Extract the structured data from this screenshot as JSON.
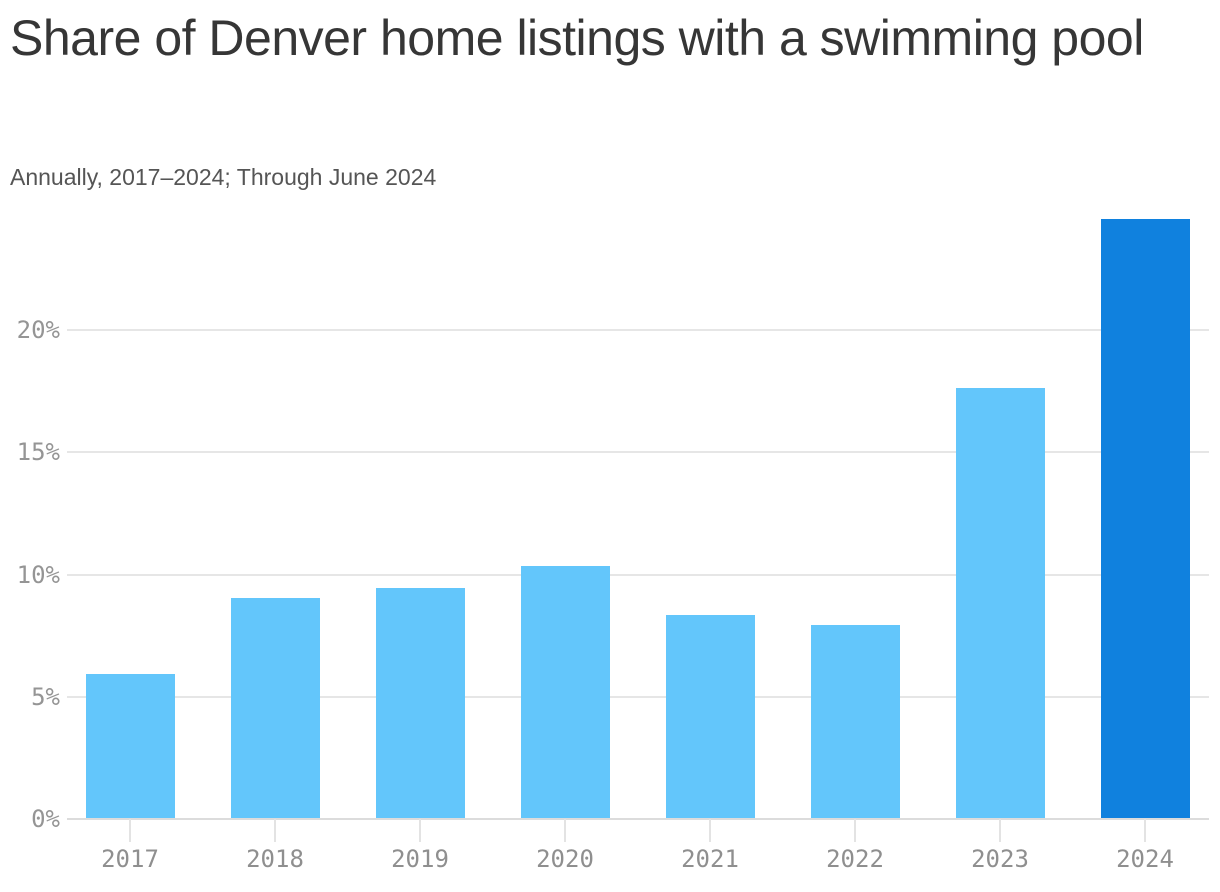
{
  "header": {
    "title": "Share of Denver home listings with a swimming pool",
    "subtitle": "Annually, 2017–2024; Through June 2024"
  },
  "chart_data": {
    "type": "bar",
    "title": "Share of Denver home listings with a swimming pool",
    "subtitle": "Annually, 2017–2024; Through June 2024",
    "categories": [
      "2017",
      "2018",
      "2019",
      "2020",
      "2021",
      "2022",
      "2023",
      "2024"
    ],
    "values": [
      5.9,
      9.0,
      9.4,
      10.3,
      8.3,
      7.9,
      17.6,
      24.5
    ],
    "unit": "%",
    "xlabel": "",
    "ylabel": "",
    "y_ticks": [
      {
        "value": 0,
        "label": "0%"
      },
      {
        "value": 5,
        "label": "5%"
      },
      {
        "value": 10,
        "label": "10%"
      },
      {
        "value": 15,
        "label": "15%"
      },
      {
        "value": 20,
        "label": "20%"
      }
    ],
    "ylim": [
      0,
      24.6
    ],
    "grid": "horizontal",
    "legend": "none",
    "bar_color": "#63c6fb",
    "highlight_color": "#1081de",
    "highlight_index": 7
  }
}
